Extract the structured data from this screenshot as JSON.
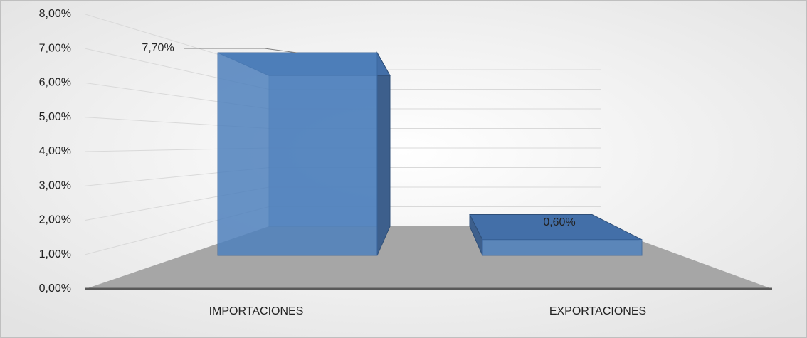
{
  "chart_data": {
    "type": "bar3d",
    "categories": [
      "IMPORTACIONES",
      "EXPORTACIONES"
    ],
    "values": [
      7.7,
      0.6
    ],
    "value_labels": [
      "7,70%",
      "0,60%"
    ],
    "color": "#4f81bd",
    "ylim": [
      0,
      8
    ],
    "yticks": [
      {
        "value": 0,
        "label": "0,00%"
      },
      {
        "value": 1,
        "label": "1,00%"
      },
      {
        "value": 2,
        "label": "2,00%"
      },
      {
        "value": 3,
        "label": "3,00%"
      },
      {
        "value": 4,
        "label": "4,00%"
      },
      {
        "value": 5,
        "label": "5,00%"
      },
      {
        "value": 6,
        "label": "6,00%"
      },
      {
        "value": 7,
        "label": "7,00%"
      },
      {
        "value": 8,
        "label": "8,00%"
      }
    ],
    "grid": true
  }
}
